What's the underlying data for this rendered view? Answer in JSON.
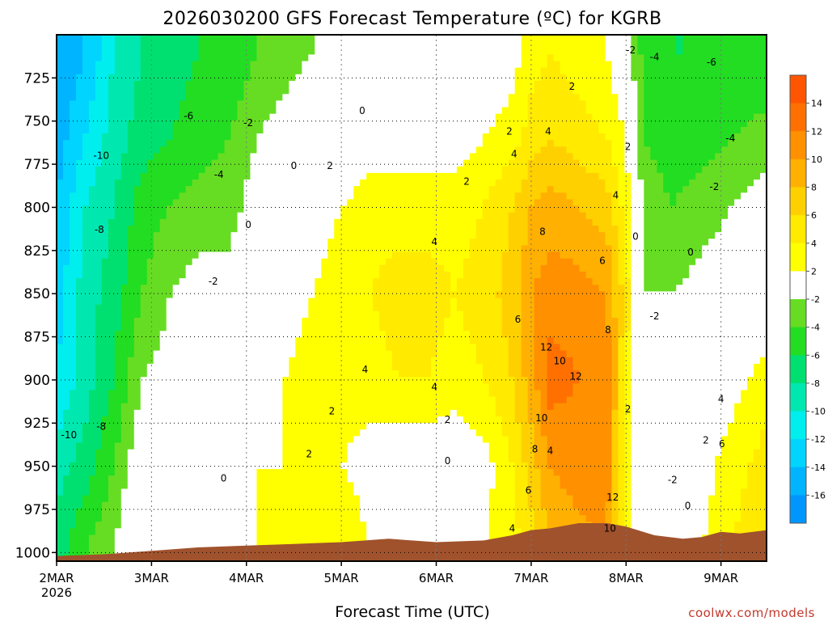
{
  "chart_data": {
    "type": "heatmap",
    "title": "2026030200 GFS Forecast Temperature (ºC) for KGRB",
    "xlabel": "Forecast Time (UTC)",
    "credit": "coolwx.com/models",
    "x_ticks": [
      {
        "value": 0,
        "label": "2MAR",
        "sublabel": "2026"
      },
      {
        "value": 1,
        "label": "3MAR"
      },
      {
        "value": 2,
        "label": "4MAR"
      },
      {
        "value": 3,
        "label": "5MAR"
      },
      {
        "value": 4,
        "label": "6MAR"
      },
      {
        "value": 5,
        "label": "7MAR"
      },
      {
        "value": 6,
        "label": "8MAR"
      },
      {
        "value": 7,
        "label": "9MAR"
      }
    ],
    "xlim": [
      0,
      7.48
    ],
    "ylim": [
      700,
      1005
    ],
    "y_scale": "linear-inverted",
    "y_ticks": [
      725,
      750,
      775,
      800,
      825,
      850,
      875,
      900,
      925,
      950,
      975,
      1000
    ],
    "grid": true,
    "colorbar": {
      "placement": "right",
      "levels": [
        -18,
        -16,
        -14,
        -12,
        -10,
        -8,
        -6,
        -4,
        -2,
        2,
        4,
        6,
        8,
        10,
        12,
        14,
        16
      ],
      "tick_labels": [
        "14",
        "12",
        "10",
        "8",
        "6",
        "4",
        "2",
        "-2",
        "-4",
        "-6",
        "-8",
        "-10",
        "-12",
        "-14",
        "-16"
      ],
      "colors": [
        "#0096ff",
        "#00b4ff",
        "#00d4ff",
        "#00eeee",
        "#00e8b0",
        "#00e070",
        "#22dd22",
        "#66dd22",
        "#ffffff",
        "#ffff00",
        "#ffea00",
        "#ffd000",
        "#ffb000",
        "#ff9000",
        "#ff7000",
        "#ff5500"
      ]
    },
    "terrain_color": "#a0522d",
    "surface_pressure": [
      {
        "x": 0.0,
        "p": 1002
      },
      {
        "x": 0.5,
        "p": 1001
      },
      {
        "x": 1.0,
        "p": 999
      },
      {
        "x": 1.5,
        "p": 997
      },
      {
        "x": 2.0,
        "p": 996
      },
      {
        "x": 2.5,
        "p": 995
      },
      {
        "x": 3.0,
        "p": 994
      },
      {
        "x": 3.5,
        "p": 992
      },
      {
        "x": 4.0,
        "p": 994
      },
      {
        "x": 4.5,
        "p": 993
      },
      {
        "x": 4.8,
        "p": 990
      },
      {
        "x": 5.0,
        "p": 987
      },
      {
        "x": 5.2,
        "p": 986
      },
      {
        "x": 5.5,
        "p": 983
      },
      {
        "x": 5.8,
        "p": 983
      },
      {
        "x": 6.0,
        "p": 985
      },
      {
        "x": 6.3,
        "p": 990
      },
      {
        "x": 6.6,
        "p": 992
      },
      {
        "x": 6.8,
        "p": 991
      },
      {
        "x": 7.0,
        "p": 988
      },
      {
        "x": 7.2,
        "p": 989
      },
      {
        "x": 7.48,
        "p": 987
      }
    ],
    "columns": [
      {
        "x": 0.0,
        "points": [
          [
            710,
            -16
          ],
          [
            760,
            -15
          ],
          [
            800,
            -14
          ],
          [
            850,
            -13
          ],
          [
            900,
            -12
          ],
          [
            950,
            -9
          ],
          [
            1000,
            -7
          ]
        ]
      },
      {
        "x": 0.3,
        "points": [
          [
            710,
            -14
          ],
          [
            760,
            -12
          ],
          [
            800,
            -10
          ],
          [
            850,
            -9
          ],
          [
            900,
            -9
          ],
          [
            950,
            -7
          ],
          [
            1000,
            -4
          ]
        ]
      },
      {
        "x": 0.6,
        "points": [
          [
            710,
            -10
          ],
          [
            760,
            -9
          ],
          [
            800,
            -8
          ],
          [
            850,
            -7
          ],
          [
            900,
            -6
          ],
          [
            950,
            -4
          ],
          [
            1000,
            -2
          ]
        ]
      },
      {
        "x": 0.9,
        "points": [
          [
            710,
            -8
          ],
          [
            760,
            -7
          ],
          [
            800,
            -5
          ],
          [
            850,
            -4
          ],
          [
            900,
            -2
          ],
          [
            950,
            0
          ],
          [
            1000,
            2
          ]
        ]
      },
      {
        "x": 1.2,
        "points": [
          [
            710,
            -7
          ],
          [
            760,
            -6
          ],
          [
            800,
            -4
          ],
          [
            850,
            -2
          ],
          [
            900,
            -1
          ],
          [
            950,
            1
          ],
          [
            1000,
            2
          ]
        ]
      },
      {
        "x": 1.5,
        "points": [
          [
            710,
            -6
          ],
          [
            760,
            -5
          ],
          [
            800,
            -3
          ],
          [
            850,
            -1
          ],
          [
            900,
            0
          ],
          [
            950,
            0
          ],
          [
            1000,
            1
          ]
        ]
      },
      {
        "x": 1.8,
        "points": [
          [
            710,
            -6
          ],
          [
            760,
            -4
          ],
          [
            800,
            -3
          ],
          [
            850,
            -1
          ],
          [
            900,
            0
          ],
          [
            950,
            1
          ],
          [
            1000,
            2
          ]
        ]
      },
      {
        "x": 2.1,
        "points": [
          [
            710,
            -4
          ],
          [
            760,
            -2
          ],
          [
            800,
            -1
          ],
          [
            850,
            0
          ],
          [
            900,
            1
          ],
          [
            950,
            2
          ],
          [
            1000,
            2
          ]
        ]
      },
      {
        "x": 2.4,
        "points": [
          [
            710,
            -3
          ],
          [
            760,
            -1
          ],
          [
            800,
            0
          ],
          [
            850,
            1
          ],
          [
            900,
            2
          ],
          [
            950,
            2
          ],
          [
            1000,
            3
          ]
        ]
      },
      {
        "x": 2.7,
        "points": [
          [
            710,
            -2
          ],
          [
            760,
            0
          ],
          [
            800,
            1
          ],
          [
            850,
            2
          ],
          [
            900,
            3
          ],
          [
            950,
            2
          ],
          [
            1000,
            3
          ]
        ]
      },
      {
        "x": 3.0,
        "points": [
          [
            710,
            -1
          ],
          [
            760,
            0
          ],
          [
            800,
            2
          ],
          [
            850,
            3
          ],
          [
            900,
            3
          ],
          [
            950,
            2
          ],
          [
            1000,
            4
          ]
        ]
      },
      {
        "x": 3.3,
        "points": [
          [
            710,
            -1
          ],
          [
            760,
            1
          ],
          [
            800,
            3
          ],
          [
            850,
            4
          ],
          [
            900,
            3
          ],
          [
            950,
            1
          ],
          [
            1000,
            2
          ]
        ]
      },
      {
        "x": 3.6,
        "points": [
          [
            710,
            -1
          ],
          [
            760,
            1
          ],
          [
            800,
            3
          ],
          [
            850,
            5
          ],
          [
            900,
            4
          ],
          [
            950,
            0
          ],
          [
            1000,
            1
          ]
        ]
      },
      {
        "x": 3.9,
        "points": [
          [
            710,
            -1
          ],
          [
            760,
            1
          ],
          [
            800,
            3
          ],
          [
            850,
            5
          ],
          [
            900,
            4
          ],
          [
            950,
            0
          ],
          [
            1000,
            1
          ]
        ]
      },
      {
        "x": 4.2,
        "points": [
          [
            710,
            -1
          ],
          [
            760,
            1
          ],
          [
            800,
            3
          ],
          [
            850,
            4
          ],
          [
            900,
            3
          ],
          [
            950,
            0
          ],
          [
            1000,
            1
          ]
        ]
      },
      {
        "x": 4.5,
        "points": [
          [
            710,
            0
          ],
          [
            760,
            2
          ],
          [
            800,
            4
          ],
          [
            850,
            5
          ],
          [
            900,
            4
          ],
          [
            950,
            1
          ],
          [
            1000,
            2
          ]
        ]
      },
      {
        "x": 4.8,
        "points": [
          [
            710,
            1
          ],
          [
            760,
            3
          ],
          [
            800,
            6
          ],
          [
            850,
            7
          ],
          [
            900,
            6
          ],
          [
            950,
            4
          ],
          [
            1000,
            3
          ]
        ]
      },
      {
        "x": 5.0,
        "points": [
          [
            710,
            3
          ],
          [
            760,
            5
          ],
          [
            800,
            8
          ],
          [
            850,
            10
          ],
          [
            900,
            9
          ],
          [
            950,
            7
          ],
          [
            1000,
            5
          ]
        ]
      },
      {
        "x": 5.2,
        "points": [
          [
            710,
            4
          ],
          [
            760,
            6
          ],
          [
            800,
            9
          ],
          [
            850,
            11
          ],
          [
            900,
            13
          ],
          [
            950,
            10
          ],
          [
            1000,
            8
          ]
        ]
      },
      {
        "x": 5.5,
        "points": [
          [
            710,
            3
          ],
          [
            760,
            5
          ],
          [
            800,
            8
          ],
          [
            850,
            11
          ],
          [
            900,
            12
          ],
          [
            950,
            11
          ],
          [
            1000,
            9
          ]
        ]
      },
      {
        "x": 5.8,
        "points": [
          [
            710,
            2
          ],
          [
            760,
            4
          ],
          [
            800,
            7
          ],
          [
            850,
            10
          ],
          [
            900,
            11
          ],
          [
            950,
            11
          ],
          [
            1000,
            10
          ]
        ]
      },
      {
        "x": 6.0,
        "points": [
          [
            710,
            -1
          ],
          [
            760,
            2
          ],
          [
            800,
            3
          ],
          [
            850,
            5
          ],
          [
            900,
            4
          ],
          [
            950,
            3
          ],
          [
            1000,
            2
          ]
        ]
      },
      {
        "x": 6.2,
        "points": [
          [
            710,
            -5
          ],
          [
            760,
            -4
          ],
          [
            800,
            -3
          ],
          [
            850,
            -2
          ],
          [
            900,
            -1
          ],
          [
            950,
            -1
          ],
          [
            1000,
            0
          ]
        ]
      },
      {
        "x": 6.5,
        "points": [
          [
            710,
            -6
          ],
          [
            760,
            -5
          ],
          [
            800,
            -4
          ],
          [
            850,
            -2
          ],
          [
            900,
            0
          ],
          [
            950,
            0
          ],
          [
            1000,
            1
          ]
        ]
      },
      {
        "x": 6.8,
        "points": [
          [
            710,
            -6
          ],
          [
            760,
            -5
          ],
          [
            800,
            -3
          ],
          [
            850,
            -1
          ],
          [
            900,
            0
          ],
          [
            950,
            1
          ],
          [
            1000,
            2
          ]
        ]
      },
      {
        "x": 7.1,
        "points": [
          [
            710,
            -6
          ],
          [
            760,
            -4
          ],
          [
            800,
            -2
          ],
          [
            850,
            -1
          ],
          [
            900,
            1
          ],
          [
            950,
            3
          ],
          [
            1000,
            4
          ]
        ]
      },
      {
        "x": 7.48,
        "points": [
          [
            710,
            -6
          ],
          [
            760,
            -3
          ],
          [
            800,
            -1
          ],
          [
            850,
            0
          ],
          [
            900,
            3
          ],
          [
            950,
            5
          ],
          [
            1000,
            6
          ]
        ]
      }
    ],
    "contour_labels": [
      {
        "x": 0.47,
        "p": 770,
        "text": "-10"
      },
      {
        "x": 0.45,
        "p": 813,
        "text": "-8"
      },
      {
        "x": 0.13,
        "p": 932,
        "text": "-10"
      },
      {
        "x": 0.47,
        "p": 927,
        "text": "-8"
      },
      {
        "x": 1.39,
        "p": 747,
        "text": "-6"
      },
      {
        "x": 2.02,
        "p": 751,
        "text": "-2"
      },
      {
        "x": 1.71,
        "p": 781,
        "text": "-4"
      },
      {
        "x": 1.65,
        "p": 843,
        "text": "-2"
      },
      {
        "x": 2.02,
        "p": 810,
        "text": "0"
      },
      {
        "x": 1.76,
        "p": 957,
        "text": "0"
      },
      {
        "x": 2.5,
        "p": 776,
        "text": "0"
      },
      {
        "x": 2.88,
        "p": 776,
        "text": "2"
      },
      {
        "x": 3.22,
        "p": 744,
        "text": "0"
      },
      {
        "x": 2.66,
        "p": 943,
        "text": "2"
      },
      {
        "x": 2.9,
        "p": 918,
        "text": "2"
      },
      {
        "x": 3.25,
        "p": 894,
        "text": "4"
      },
      {
        "x": 3.98,
        "p": 820,
        "text": "4"
      },
      {
        "x": 3.98,
        "p": 904,
        "text": "4"
      },
      {
        "x": 4.12,
        "p": 923,
        "text": "2"
      },
      {
        "x": 4.12,
        "p": 947,
        "text": "0"
      },
      {
        "x": 4.32,
        "p": 785,
        "text": "2"
      },
      {
        "x": 4.82,
        "p": 769,
        "text": "4"
      },
      {
        "x": 4.77,
        "p": 756,
        "text": "2"
      },
      {
        "x": 5.18,
        "p": 756,
        "text": "4"
      },
      {
        "x": 5.43,
        "p": 730,
        "text": "2"
      },
      {
        "x": 5.12,
        "p": 814,
        "text": "8"
      },
      {
        "x": 4.86,
        "p": 865,
        "text": "6"
      },
      {
        "x": 5.16,
        "p": 881,
        "text": "12"
      },
      {
        "x": 5.3,
        "p": 889,
        "text": "10"
      },
      {
        "x": 5.47,
        "p": 898,
        "text": "12"
      },
      {
        "x": 5.11,
        "p": 922,
        "text": "10"
      },
      {
        "x": 5.04,
        "p": 940,
        "text": "8"
      },
      {
        "x": 5.2,
        "p": 941,
        "text": "4"
      },
      {
        "x": 4.97,
        "p": 964,
        "text": "6"
      },
      {
        "x": 4.8,
        "p": 986,
        "text": "4"
      },
      {
        "x": 5.75,
        "p": 831,
        "text": "6"
      },
      {
        "x": 5.81,
        "p": 871,
        "text": "8"
      },
      {
        "x": 5.89,
        "p": 793,
        "text": "4"
      },
      {
        "x": 6.02,
        "p": 765,
        "text": "2"
      },
      {
        "x": 6.02,
        "p": 917,
        "text": "2"
      },
      {
        "x": 5.86,
        "p": 968,
        "text": "12"
      },
      {
        "x": 5.83,
        "p": 986,
        "text": "10"
      },
      {
        "x": 6.1,
        "p": 817,
        "text": "0"
      },
      {
        "x": 6.05,
        "p": 709,
        "text": "-2"
      },
      {
        "x": 6.3,
        "p": 713,
        "text": "-4"
      },
      {
        "x": 6.9,
        "p": 716,
        "text": "-6"
      },
      {
        "x": 7.1,
        "p": 760,
        "text": "-4"
      },
      {
        "x": 6.3,
        "p": 863,
        "text": "-2"
      },
      {
        "x": 6.93,
        "p": 788,
        "text": "-2"
      },
      {
        "x": 6.68,
        "p": 826,
        "text": "0"
      },
      {
        "x": 6.49,
        "p": 958,
        "text": "-2"
      },
      {
        "x": 6.65,
        "p": 973,
        "text": "0"
      },
      {
        "x": 6.84,
        "p": 935,
        "text": "2"
      },
      {
        "x": 7.01,
        "p": 937,
        "text": "6"
      },
      {
        "x": 7.0,
        "p": 911,
        "text": "4"
      }
    ]
  }
}
